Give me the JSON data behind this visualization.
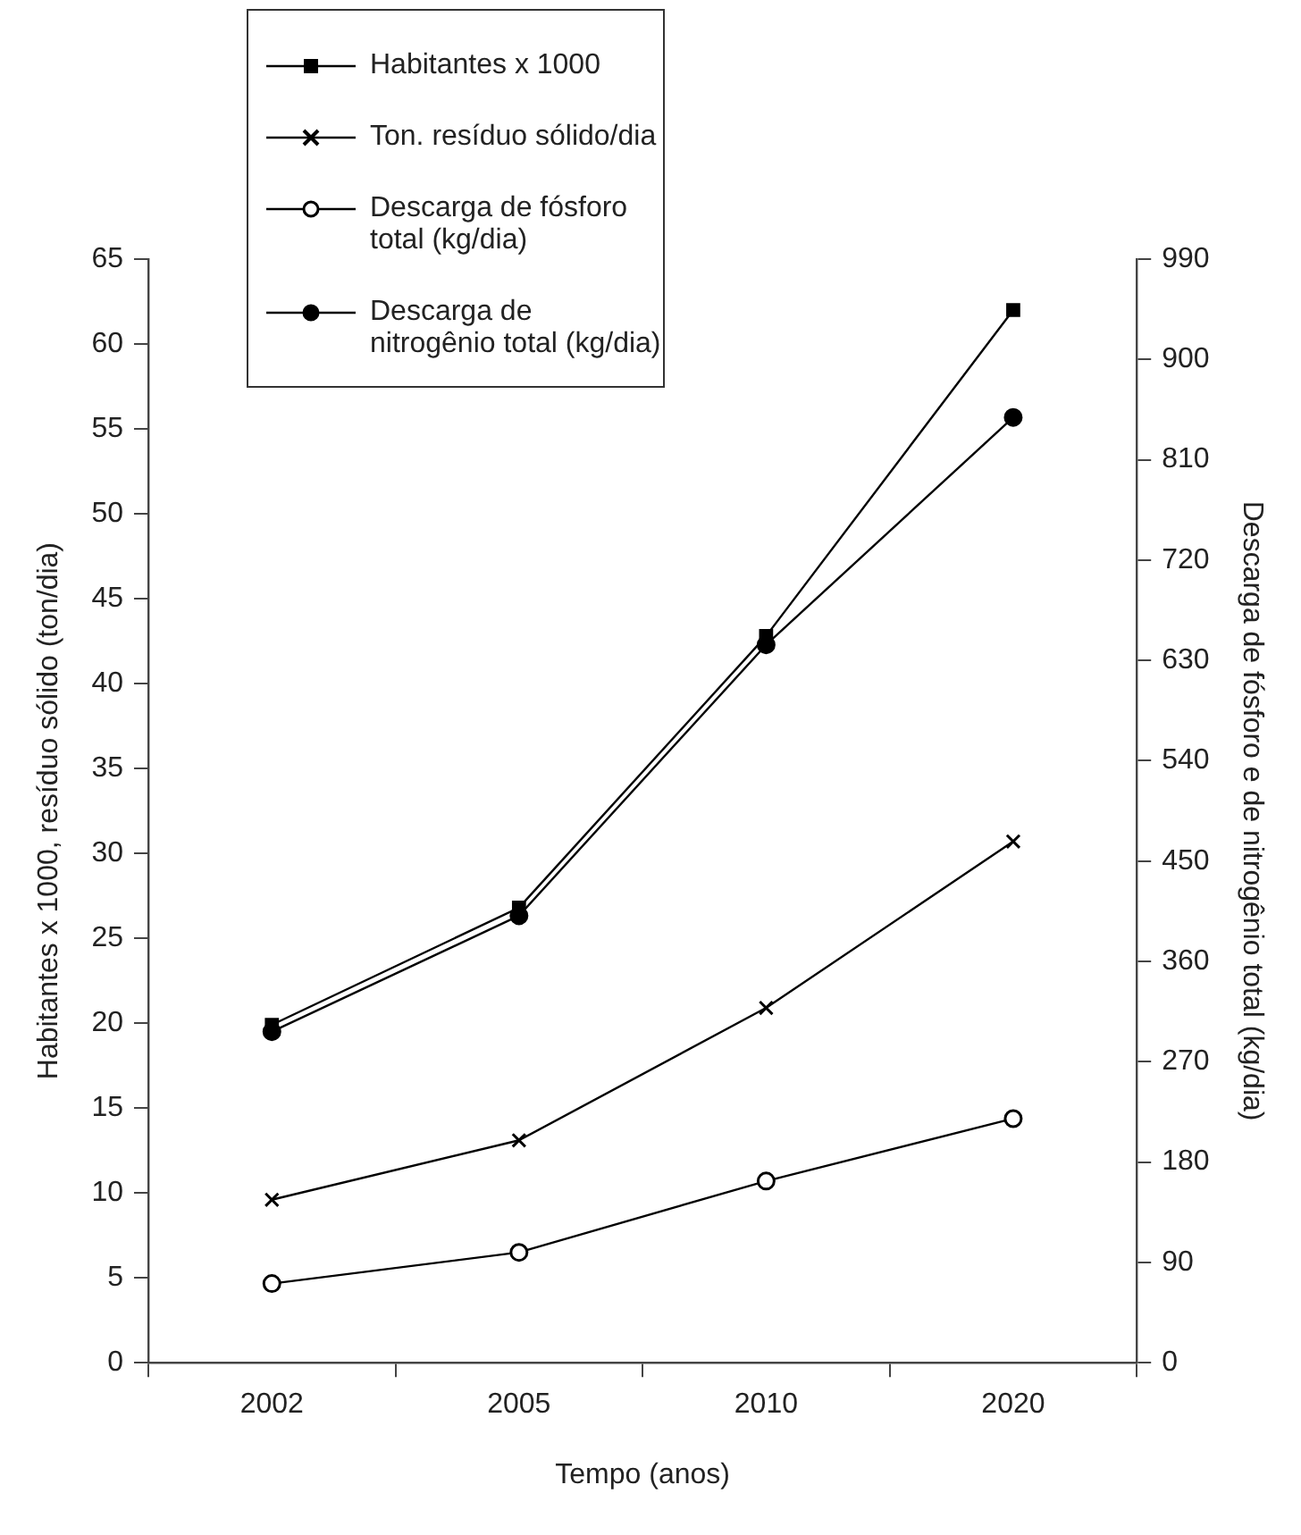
{
  "chart_data": {
    "type": "line",
    "xlabel": "Tempo (anos)",
    "ylabel": "Habitantes x 1000, resíduo sólido (ton/dia)",
    "y2label": "Descarga de fósforo e de nitrogênio total (kg/dia)",
    "categories": [
      "2002",
      "2005",
      "2010",
      "2020"
    ],
    "ylim": [
      0,
      65
    ],
    "yticks": [
      0,
      5,
      10,
      15,
      20,
      25,
      30,
      35,
      40,
      45,
      50,
      55,
      60,
      65
    ],
    "y2lim": [
      0,
      990
    ],
    "y2ticks": [
      0,
      90,
      180,
      270,
      360,
      450,
      540,
      630,
      720,
      810,
      900,
      990
    ],
    "grid": false,
    "legend": "top left",
    "line_style": "solid",
    "series": [
      {
        "name": "Habitantes x 1000",
        "color": "#000000",
        "marker": "square",
        "values": [
          19.9,
          26.8,
          42.8,
          62.0
        ]
      },
      {
        "name": "Ton. resíduo sólido/dia",
        "color": "#000000",
        "marker": "cross",
        "values": [
          9.6,
          13.1,
          20.9,
          30.7
        ]
      },
      {
        "name": "Descarga de fósforo total (kg/dia)",
        "color": "#000000",
        "marker": "circle",
        "axis": "y2",
        "values": [
          71,
          99,
          163,
          219
        ]
      },
      {
        "name": "Descarga de nitrogênio total (kg/dia)",
        "color": "#000000",
        "marker": "circle",
        "axis": "y2",
        "values": [
          297,
          401,
          644,
          848
        ]
      }
    ]
  }
}
